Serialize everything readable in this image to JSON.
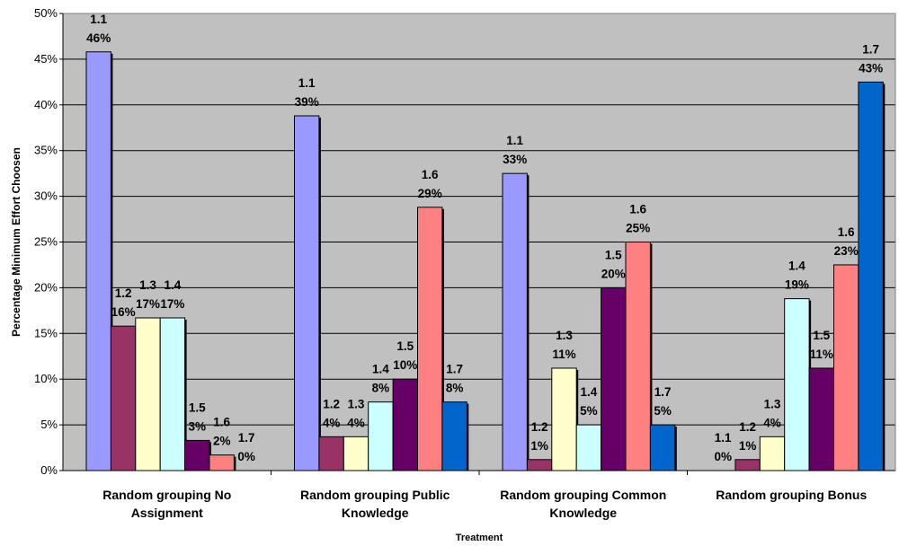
{
  "chart_data": {
    "type": "bar",
    "title": "",
    "xlabel": "Treatment",
    "ylabel": "Percentage Minimum Effort Choosen",
    "ylim": [
      0,
      50
    ],
    "y_ticks": [
      "0%",
      "5%",
      "10%",
      "15%",
      "20%",
      "25%",
      "30%",
      "35%",
      "40%",
      "45%",
      "50%"
    ],
    "grid": true,
    "legend": "none",
    "plot_background": "#C0C0C0",
    "categories": [
      [
        "Random grouping No",
        "Assignment"
      ],
      [
        "Random grouping Public",
        "Knowledge"
      ],
      [
        "Random grouping Common",
        "Knowledge"
      ],
      [
        "Random grouping Bonus"
      ]
    ],
    "series": [
      {
        "name": "1.1",
        "color": "#9999FF",
        "values": [
          45.8,
          38.8,
          32.5,
          0
        ],
        "labels": [
          "46%",
          "39%",
          "33%",
          "0%"
        ]
      },
      {
        "name": "1.2",
        "color": "#993366",
        "values": [
          15.8,
          3.7,
          1.2,
          1.2
        ],
        "labels": [
          "16%",
          "4%",
          "1%",
          "1%"
        ]
      },
      {
        "name": "1.3",
        "color": "#FFFFCC",
        "values": [
          16.7,
          3.7,
          11.2,
          3.7
        ],
        "labels": [
          "17%",
          "4%",
          "11%",
          "4%"
        ]
      },
      {
        "name": "1.4",
        "color": "#CCFFFF",
        "values": [
          16.7,
          7.5,
          5.0,
          18.8
        ],
        "labels": [
          "17%",
          "8%",
          "5%",
          "19%"
        ]
      },
      {
        "name": "1.5",
        "color": "#660066",
        "values": [
          3.3,
          10.0,
          20.0,
          11.2
        ],
        "labels": [
          "3%",
          "10%",
          "20%",
          "11%"
        ]
      },
      {
        "name": "1.6",
        "color": "#FF8080",
        "values": [
          1.7,
          28.8,
          25.0,
          22.5
        ],
        "labels": [
          "2%",
          "29%",
          "25%",
          "23%"
        ]
      },
      {
        "name": "1.7",
        "color": "#0066CC",
        "values": [
          0,
          7.5,
          5.0,
          42.5
        ],
        "labels": [
          "0%",
          "8%",
          "5%",
          "43%"
        ]
      }
    ]
  }
}
